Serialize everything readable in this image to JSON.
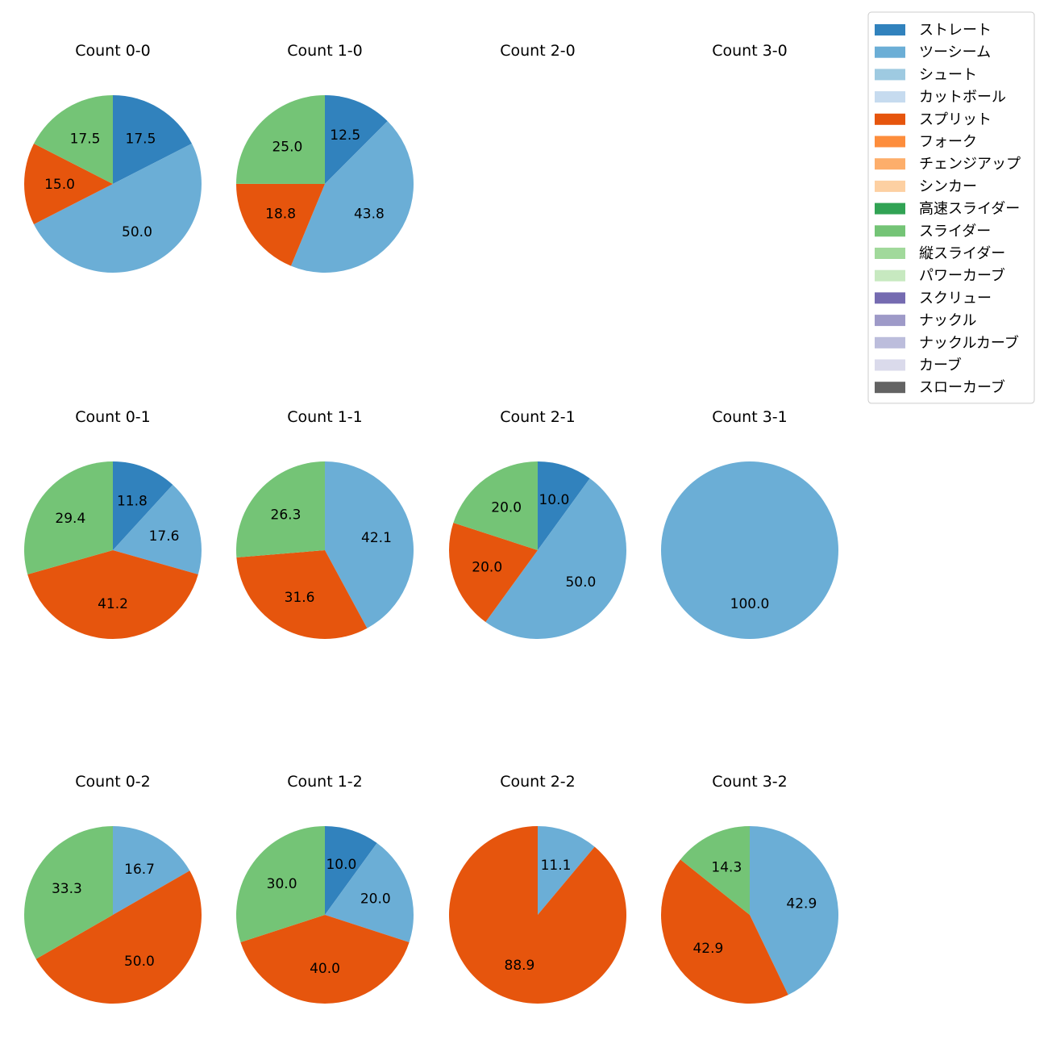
{
  "chart_data": [
    {
      "type": "pie",
      "title": "Count 0-0",
      "slices": [
        {
          "label": "ストレート",
          "value": 17.5
        },
        {
          "label": "ツーシーム",
          "value": 50.0
        },
        {
          "label": "スプリット",
          "value": 15.0
        },
        {
          "label": "スライダー",
          "value": 17.5
        }
      ]
    },
    {
      "type": "pie",
      "title": "Count 1-0",
      "slices": [
        {
          "label": "ストレート",
          "value": 12.5
        },
        {
          "label": "ツーシーム",
          "value": 43.8
        },
        {
          "label": "スプリット",
          "value": 18.8
        },
        {
          "label": "スライダー",
          "value": 25.0
        }
      ]
    },
    {
      "type": "pie",
      "title": "Count 2-0",
      "slices": []
    },
    {
      "type": "pie",
      "title": "Count 3-0",
      "slices": []
    },
    {
      "type": "pie",
      "title": "Count 0-1",
      "slices": [
        {
          "label": "ストレート",
          "value": 11.8
        },
        {
          "label": "ツーシーム",
          "value": 17.6
        },
        {
          "label": "スプリット",
          "value": 41.2
        },
        {
          "label": "スライダー",
          "value": 29.4
        }
      ]
    },
    {
      "type": "pie",
      "title": "Count 1-1",
      "slices": [
        {
          "label": "ツーシーム",
          "value": 42.1
        },
        {
          "label": "スプリット",
          "value": 31.6
        },
        {
          "label": "スライダー",
          "value": 26.3
        }
      ]
    },
    {
      "type": "pie",
      "title": "Count 2-1",
      "slices": [
        {
          "label": "ストレート",
          "value": 10.0
        },
        {
          "label": "ツーシーム",
          "value": 50.0
        },
        {
          "label": "スプリット",
          "value": 20.0
        },
        {
          "label": "スライダー",
          "value": 20.0
        }
      ]
    },
    {
      "type": "pie",
      "title": "Count 3-1",
      "slices": [
        {
          "label": "ツーシーム",
          "value": 100.0
        }
      ]
    },
    {
      "type": "pie",
      "title": "Count 0-2",
      "slices": [
        {
          "label": "ツーシーム",
          "value": 16.7
        },
        {
          "label": "スプリット",
          "value": 50.0
        },
        {
          "label": "スライダー",
          "value": 33.3
        }
      ]
    },
    {
      "type": "pie",
      "title": "Count 1-2",
      "slices": [
        {
          "label": "ストレート",
          "value": 10.0
        },
        {
          "label": "ツーシーム",
          "value": 20.0
        },
        {
          "label": "スプリット",
          "value": 40.0
        },
        {
          "label": "スライダー",
          "value": 30.0
        }
      ]
    },
    {
      "type": "pie",
      "title": "Count 2-2",
      "slices": [
        {
          "label": "ツーシーム",
          "value": 11.1
        },
        {
          "label": "スプリット",
          "value": 88.9
        }
      ]
    },
    {
      "type": "pie",
      "title": "Count 3-2",
      "slices": [
        {
          "label": "ツーシーム",
          "value": 42.9
        },
        {
          "label": "スプリット",
          "value": 42.9
        },
        {
          "label": "スライダー",
          "value": 14.3
        }
      ]
    }
  ],
  "legend": {
    "placement": "top-right",
    "items": [
      {
        "label": "ストレート",
        "color": "#3182bd"
      },
      {
        "label": "ツーシーム",
        "color": "#6baed6"
      },
      {
        "label": "シュート",
        "color": "#9ecae1"
      },
      {
        "label": "カットボール",
        "color": "#c6dbef"
      },
      {
        "label": "スプリット",
        "color": "#e6550d"
      },
      {
        "label": "フォーク",
        "color": "#fd8d3c"
      },
      {
        "label": "チェンジアップ",
        "color": "#fdae6b"
      },
      {
        "label": "シンカー",
        "color": "#fdd0a2"
      },
      {
        "label": "高速スライダー",
        "color": "#31a354"
      },
      {
        "label": "スライダー",
        "color": "#74c476"
      },
      {
        "label": "縦スライダー",
        "color": "#a1d99b"
      },
      {
        "label": "パワーカーブ",
        "color": "#c7e9c0"
      },
      {
        "label": "スクリュー",
        "color": "#756bb1"
      },
      {
        "label": "ナックル",
        "color": "#9e9ac8"
      },
      {
        "label": "ナックルカーブ",
        "color": "#bcbddc"
      },
      {
        "label": "カーブ",
        "color": "#dadaeb"
      },
      {
        "label": "スローカーブ",
        "color": "#636363"
      }
    ]
  }
}
